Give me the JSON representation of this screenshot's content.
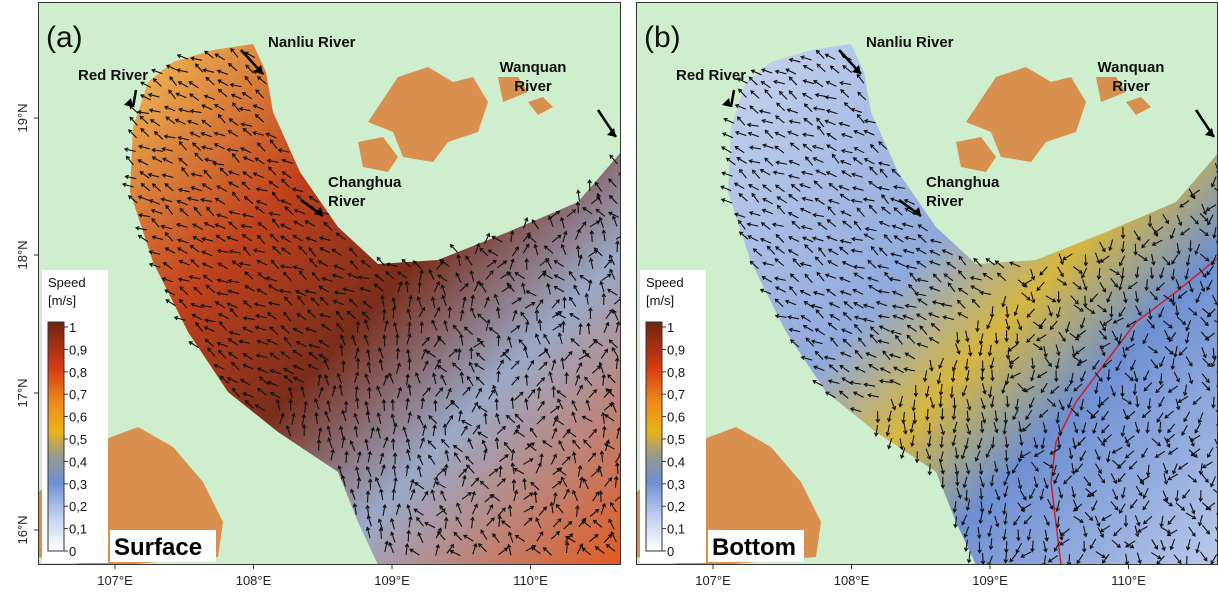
{
  "y_axis": {
    "ticks": [
      "19°N",
      "18°N",
      "17°N",
      "16°N"
    ]
  },
  "panels": [
    {
      "label": "(a)",
      "layer": "Surface",
      "x_ticks": [
        "107°E",
        "108°E",
        "109°E",
        "110°E"
      ],
      "rivers": [
        {
          "name": [
            "Red River"
          ]
        },
        {
          "name": [
            "Nanliu River"
          ]
        },
        {
          "name": [
            "Changhua",
            "River"
          ]
        },
        {
          "name": [
            "Wanquan",
            "River"
          ]
        }
      ],
      "colorbar": {
        "title": "Speed",
        "unit": "[m/s]",
        "ticks": [
          "1",
          "0,9",
          "0,8",
          "0,7",
          "0,6",
          "0,5",
          "0,4",
          "0,3",
          "0,2",
          "0,1",
          "0"
        ]
      }
    },
    {
      "label": "(b)",
      "layer": "Bottom",
      "x_ticks": [
        "107°E",
        "108°E",
        "109°E",
        "110°E"
      ],
      "rivers": [
        {
          "name": [
            "Red River"
          ]
        },
        {
          "name": [
            "Nanliu River"
          ]
        },
        {
          "name": [
            "Changhua",
            "River"
          ]
        },
        {
          "name": [
            "Wanquan",
            "River"
          ]
        }
      ],
      "colorbar": {
        "title": "Speed",
        "unit": "[m/s]",
        "ticks": [
          "1",
          "0,9",
          "0,8",
          "0,7",
          "0,6",
          "0,5",
          "0,4",
          "0,3",
          "0,2",
          "0,1",
          "0"
        ]
      }
    }
  ]
}
